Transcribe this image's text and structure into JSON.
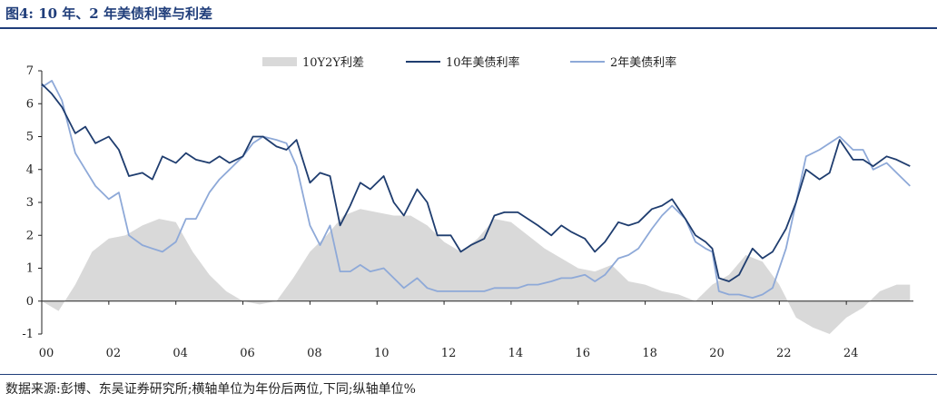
{
  "header": {
    "title": "图4:  10 年、2 年美债利率与利差"
  },
  "footer": {
    "source": "数据来源:彭博、东吴证券研究所;横轴单位为年份后两位,下同;纵轴单位%"
  },
  "colors": {
    "spread": "#d9d9d9",
    "y10": "#1f3d6f",
    "y2": "#8ea9d8",
    "axis": "#222222"
  },
  "chart_data": {
    "type": "line",
    "ylim": [
      -1,
      7
    ],
    "yticks": [
      "-1",
      "0",
      "1",
      "2",
      "3",
      "4",
      "5",
      "6",
      "7"
    ],
    "xlim": [
      2000,
      2026
    ],
    "xticks": [
      {
        "year": 2000,
        "label": "00"
      },
      {
        "year": 2002,
        "label": "02"
      },
      {
        "year": 2004,
        "label": "04"
      },
      {
        "year": 2006,
        "label": "06"
      },
      {
        "year": 2008,
        "label": "08"
      },
      {
        "year": 2010,
        "label": "10"
      },
      {
        "year": 2012,
        "label": "12"
      },
      {
        "year": 2014,
        "label": "14"
      },
      {
        "year": 2016,
        "label": "16"
      },
      {
        "year": 2018,
        "label": "18"
      },
      {
        "year": 2020,
        "label": "20"
      },
      {
        "year": 2022,
        "label": "22"
      },
      {
        "year": 2024,
        "label": "24"
      }
    ],
    "legend": {
      "placement": "top-center"
    },
    "series": [
      {
        "name": "10Y2Y利差",
        "kind": "area",
        "x": [
          2000.0,
          2000.5,
          2001.0,
          2001.5,
          2002.0,
          2002.5,
          2003.0,
          2003.5,
          2004.0,
          2004.5,
          2005.0,
          2005.5,
          2006.0,
          2006.5,
          2007.0,
          2007.5,
          2008.0,
          2008.5,
          2009.0,
          2009.5,
          2010.0,
          2010.5,
          2011.0,
          2011.5,
          2012.0,
          2012.5,
          2013.0,
          2013.5,
          2014.0,
          2014.5,
          2015.0,
          2015.5,
          2016.0,
          2016.5,
          2017.0,
          2017.5,
          2018.0,
          2018.5,
          2019.0,
          2019.5,
          2020.0,
          2020.5,
          2021.0,
          2021.5,
          2022.0,
          2022.5,
          2023.0,
          2023.5,
          2024.0,
          2024.5,
          2025.0,
          2025.5,
          2025.9
        ],
        "values": [
          0.0,
          -0.3,
          0.5,
          1.5,
          1.9,
          2.0,
          2.3,
          2.5,
          2.4,
          1.5,
          0.8,
          0.3,
          0.0,
          -0.1,
          0.0,
          0.7,
          1.5,
          2.0,
          2.6,
          2.8,
          2.7,
          2.6,
          2.6,
          2.3,
          1.8,
          1.5,
          1.9,
          2.5,
          2.4,
          2.0,
          1.6,
          1.3,
          1.0,
          0.9,
          1.1,
          0.6,
          0.5,
          0.3,
          0.2,
          0.0,
          0.5,
          0.8,
          1.4,
          1.2,
          0.5,
          -0.5,
          -0.8,
          -1.0,
          -0.5,
          -0.2,
          0.3,
          0.5,
          0.5
        ]
      },
      {
        "name": "10年美债利率",
        "kind": "line",
        "x": [
          2000.0,
          2000.3,
          2000.6,
          2001.0,
          2001.3,
          2001.6,
          2002.0,
          2002.3,
          2002.6,
          2003.0,
          2003.3,
          2003.6,
          2004.0,
          2004.3,
          2004.6,
          2005.0,
          2005.3,
          2005.6,
          2006.0,
          2006.3,
          2006.6,
          2007.0,
          2007.3,
          2007.6,
          2008.0,
          2008.3,
          2008.6,
          2008.9,
          2009.2,
          2009.5,
          2009.8,
          2010.2,
          2010.5,
          2010.8,
          2011.2,
          2011.5,
          2011.8,
          2012.2,
          2012.5,
          2012.8,
          2013.2,
          2013.5,
          2013.8,
          2014.2,
          2014.5,
          2014.8,
          2015.2,
          2015.5,
          2015.8,
          2016.2,
          2016.5,
          2016.8,
          2017.2,
          2017.5,
          2017.8,
          2018.2,
          2018.5,
          2018.8,
          2019.2,
          2019.5,
          2019.8,
          2020.0,
          2020.2,
          2020.5,
          2020.8,
          2021.2,
          2021.5,
          2021.8,
          2022.2,
          2022.5,
          2022.8,
          2023.2,
          2023.5,
          2023.8,
          2024.2,
          2024.5,
          2024.8,
          2025.2,
          2025.5,
          2025.9
        ],
        "values": [
          6.6,
          6.3,
          5.9,
          5.1,
          5.3,
          4.8,
          5.0,
          4.6,
          3.8,
          3.9,
          3.7,
          4.4,
          4.2,
          4.5,
          4.3,
          4.2,
          4.4,
          4.2,
          4.4,
          5.0,
          5.0,
          4.7,
          4.6,
          4.9,
          3.6,
          3.9,
          3.8,
          2.3,
          2.9,
          3.6,
          3.4,
          3.8,
          3.0,
          2.6,
          3.4,
          3.0,
          2.0,
          2.0,
          1.5,
          1.7,
          1.9,
          2.6,
          2.7,
          2.7,
          2.5,
          2.3,
          2.0,
          2.3,
          2.1,
          1.9,
          1.5,
          1.8,
          2.4,
          2.3,
          2.4,
          2.8,
          2.9,
          3.1,
          2.5,
          2.0,
          1.8,
          1.6,
          0.7,
          0.6,
          0.8,
          1.6,
          1.3,
          1.5,
          2.2,
          3.0,
          4.0,
          3.7,
          3.9,
          4.9,
          4.3,
          4.3,
          4.1,
          4.4,
          4.3,
          4.1
        ]
      },
      {
        "name": "2年美债利率",
        "kind": "line",
        "x": [
          2000.0,
          2000.3,
          2000.6,
          2001.0,
          2001.3,
          2001.6,
          2002.0,
          2002.3,
          2002.6,
          2003.0,
          2003.3,
          2003.6,
          2004.0,
          2004.3,
          2004.6,
          2005.0,
          2005.3,
          2005.6,
          2006.0,
          2006.3,
          2006.6,
          2007.0,
          2007.3,
          2007.6,
          2008.0,
          2008.3,
          2008.6,
          2008.9,
          2009.2,
          2009.5,
          2009.8,
          2010.2,
          2010.5,
          2010.8,
          2011.2,
          2011.5,
          2011.8,
          2012.2,
          2012.5,
          2012.8,
          2013.2,
          2013.5,
          2013.8,
          2014.2,
          2014.5,
          2014.8,
          2015.2,
          2015.5,
          2015.8,
          2016.2,
          2016.5,
          2016.8,
          2017.2,
          2017.5,
          2017.8,
          2018.2,
          2018.5,
          2018.8,
          2019.2,
          2019.5,
          2019.8,
          2020.0,
          2020.2,
          2020.5,
          2020.8,
          2021.2,
          2021.5,
          2021.8,
          2022.2,
          2022.5,
          2022.8,
          2023.2,
          2023.5,
          2023.8,
          2024.2,
          2024.5,
          2024.8,
          2025.2,
          2025.5,
          2025.9
        ],
        "values": [
          6.5,
          6.7,
          6.1,
          4.5,
          4.0,
          3.5,
          3.1,
          3.3,
          2.0,
          1.7,
          1.6,
          1.5,
          1.8,
          2.5,
          2.5,
          3.3,
          3.7,
          4.0,
          4.4,
          4.8,
          5.0,
          4.9,
          4.8,
          4.1,
          2.3,
          1.7,
          2.3,
          0.9,
          0.9,
          1.1,
          0.9,
          1.0,
          0.7,
          0.4,
          0.7,
          0.4,
          0.3,
          0.3,
          0.3,
          0.3,
          0.3,
          0.4,
          0.4,
          0.4,
          0.5,
          0.5,
          0.6,
          0.7,
          0.7,
          0.8,
          0.6,
          0.8,
          1.3,
          1.4,
          1.6,
          2.2,
          2.6,
          2.9,
          2.5,
          1.8,
          1.6,
          1.5,
          0.3,
          0.2,
          0.2,
          0.1,
          0.2,
          0.4,
          1.6,
          3.0,
          4.4,
          4.6,
          4.8,
          5.0,
          4.6,
          4.6,
          4.0,
          4.2,
          3.9,
          3.5
        ]
      }
    ]
  }
}
